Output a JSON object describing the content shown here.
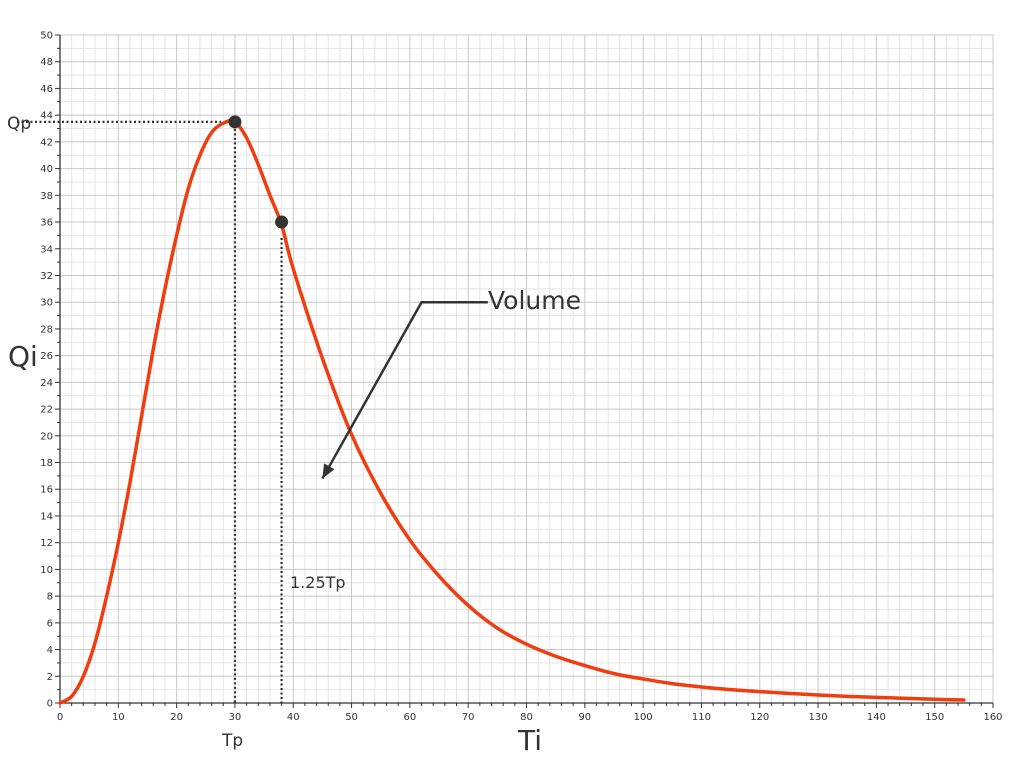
{
  "colors": {
    "curve": "#f03c0f",
    "grid_major": "#c8c8c8",
    "grid_minor": "#e4e4e4",
    "axis": "#333333",
    "marker": "#333333",
    "text": "#333333"
  },
  "chart_data": {
    "type": "line",
    "xlabel": "Ti",
    "ylabel": "Qi",
    "xlim": [
      0,
      160
    ],
    "ylim": [
      0,
      50
    ],
    "x_ticks": [
      0,
      10,
      20,
      30,
      40,
      50,
      60,
      70,
      80,
      90,
      100,
      110,
      120,
      130,
      140,
      150,
      160
    ],
    "y_ticks": [
      0,
      2,
      4,
      6,
      8,
      10,
      12,
      14,
      16,
      18,
      20,
      22,
      24,
      26,
      28,
      30,
      32,
      34,
      36,
      38,
      40,
      42,
      44,
      46,
      48,
      50
    ],
    "grid": true,
    "series": [
      {
        "points": [
          [
            0,
            0
          ],
          [
            2,
            0.5
          ],
          [
            4,
            2
          ],
          [
            6,
            4.5
          ],
          [
            8,
            8
          ],
          [
            10,
            12
          ],
          [
            12,
            16.5
          ],
          [
            14,
            21.5
          ],
          [
            16,
            26.5
          ],
          [
            18,
            31
          ],
          [
            20,
            35
          ],
          [
            22,
            38.5
          ],
          [
            24,
            41
          ],
          [
            26,
            42.7
          ],
          [
            28,
            43.4
          ],
          [
            30,
            43.5
          ],
          [
            32,
            42.3
          ],
          [
            34,
            40.3
          ],
          [
            36,
            38
          ],
          [
            38,
            35.8
          ],
          [
            40,
            32.5
          ],
          [
            45,
            25.8
          ],
          [
            50,
            20.1
          ],
          [
            55,
            15.7
          ],
          [
            60,
            12.2
          ],
          [
            65,
            9.5
          ],
          [
            70,
            7.3
          ],
          [
            75,
            5.6
          ],
          [
            80,
            4.4
          ],
          [
            85,
            3.5
          ],
          [
            90,
            2.8
          ],
          [
            95,
            2.2
          ],
          [
            100,
            1.8
          ],
          [
            105,
            1.45
          ],
          [
            110,
            1.2
          ],
          [
            115,
            1.0
          ],
          [
            120,
            0.85
          ],
          [
            125,
            0.72
          ],
          [
            130,
            0.6
          ],
          [
            135,
            0.5
          ],
          [
            140,
            0.42
          ],
          [
            145,
            0.35
          ],
          [
            150,
            0.28
          ],
          [
            155,
            0.22
          ]
        ]
      }
    ],
    "markers": [
      {
        "label": "Tp / Qp",
        "x": 30,
        "y": 43.5
      },
      {
        "label": "1.25Tp",
        "x": 38,
        "y": 36
      }
    ],
    "annotations": {
      "qp": "Qp",
      "tp": "Tp",
      "tp125": "1.25Tp",
      "volume": "Volume",
      "volume_arrow": {
        "from": [
          62,
          30
        ],
        "to": [
          45,
          16.8
        ],
        "elbow_to": [
          72,
          30
        ]
      }
    }
  }
}
